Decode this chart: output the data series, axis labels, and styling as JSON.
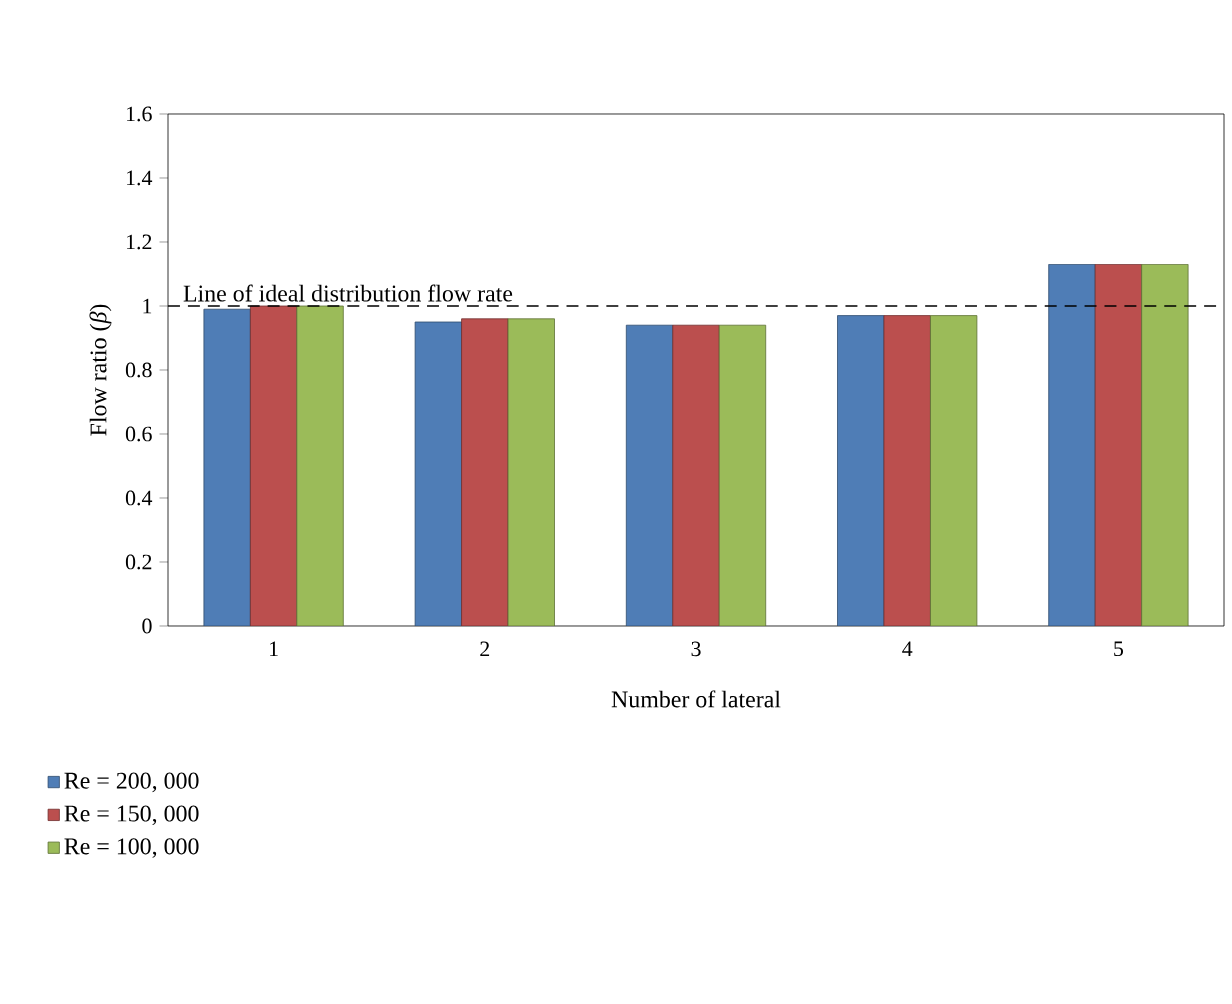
{
  "chart_data": {
    "type": "bar",
    "xlabel": "Number of lateral",
    "ylabel": "Flow ratio (*β*)",
    "categories": [
      "1",
      "2",
      "3",
      "4",
      "5"
    ],
    "series": [
      {
        "name": "Re = 200, 000",
        "color": "#4f7db6",
        "values": [
          0.99,
          0.95,
          0.94,
          0.97,
          1.13
        ]
      },
      {
        "name": "Re = 150, 000",
        "color": "#bb4f4e",
        "values": [
          1.0,
          0.96,
          0.94,
          0.97,
          1.13
        ]
      },
      {
        "name": "Re = 100, 000",
        "color": "#9bbb59",
        "values": [
          1.0,
          0.96,
          0.94,
          0.97,
          1.13
        ]
      }
    ],
    "ylim": [
      0,
      1.6
    ],
    "yticks": [
      0,
      0.2,
      0.4,
      0.6,
      0.8,
      1,
      1.2,
      1.4,
      1.6
    ],
    "ref_lines": [
      {
        "axis": "y",
        "value": 1,
        "label": "Line of ideal distribution flow rate",
        "color": "#000000",
        "line_style": "dashed"
      }
    ],
    "legend": "bottom left",
    "grid": false
  }
}
